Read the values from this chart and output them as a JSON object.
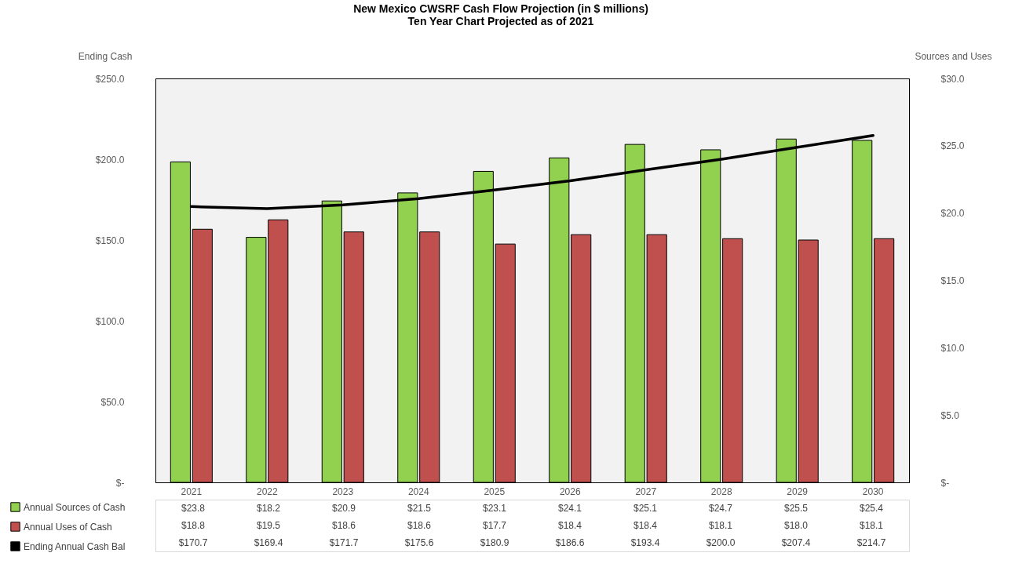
{
  "chart_data": {
    "type": "bar",
    "title": "New Mexico CWSRF Cash Flow Projection (in $ millions)",
    "subtitle": "Ten Year Chart Projected as of 2021",
    "ylabel": "Ending Cash",
    "y2label": "Sources and Uses",
    "categories": [
      "2021",
      "2022",
      "2023",
      "2024",
      "2025",
      "2026",
      "2027",
      "2028",
      "2029",
      "2030"
    ],
    "series": [
      {
        "name": "Annual Sources of Cash",
        "axis": "y2",
        "color": "#92d050",
        "values": [
          23.8,
          18.2,
          20.9,
          21.5,
          23.1,
          24.1,
          25.1,
          24.7,
          25.5,
          25.4
        ],
        "value_labels": [
          "$23.8",
          "$18.2",
          "$20.9",
          "$21.5",
          "$23.1",
          "$24.1",
          "$25.1",
          "$24.7",
          "$25.5",
          "$25.4"
        ]
      },
      {
        "name": "Annual Uses of Cash",
        "axis": "y2",
        "color": "#c0504d",
        "values": [
          18.8,
          19.5,
          18.6,
          18.6,
          17.7,
          18.4,
          18.4,
          18.1,
          18.0,
          18.1
        ],
        "value_labels": [
          "$18.8",
          "$19.5",
          "$18.6",
          "$18.6",
          "$17.7",
          "$18.4",
          "$18.4",
          "$18.1",
          "$18.0",
          "$18.1"
        ]
      },
      {
        "name": "Ending Annual Cash Bal",
        "type": "line",
        "axis": "y",
        "color": "#000000",
        "values": [
          170.7,
          169.4,
          171.7,
          175.6,
          180.9,
          186.6,
          193.4,
          200.0,
          207.4,
          214.7
        ],
        "value_labels": [
          "$170.7",
          "$169.4",
          "$171.7",
          "$175.6",
          "$180.9",
          "$186.6",
          "$193.4",
          "$200.0",
          "$207.4",
          "$214.7"
        ]
      }
    ],
    "ylim": [
      0,
      250
    ],
    "yticks": [
      {
        "value": 0,
        "label": "$-"
      },
      {
        "value": 50,
        "label": "$50.0"
      },
      {
        "value": 100,
        "label": "$100.0"
      },
      {
        "value": 150,
        "label": "$150.0"
      },
      {
        "value": 200,
        "label": "$200.0"
      },
      {
        "value": 250,
        "label": "$250.0"
      }
    ],
    "y2lim": [
      0,
      30
    ],
    "y2ticks": [
      {
        "value": 0,
        "label": "$-"
      },
      {
        "value": 5,
        "label": "$5.0"
      },
      {
        "value": 10,
        "label": "$10.0"
      },
      {
        "value": 15,
        "label": "$15.0"
      },
      {
        "value": 20,
        "label": "$20.0"
      },
      {
        "value": 25,
        "label": "$25.0"
      },
      {
        "value": 30,
        "label": "$30.0"
      }
    ],
    "grid": false,
    "legend": "bottom left"
  }
}
